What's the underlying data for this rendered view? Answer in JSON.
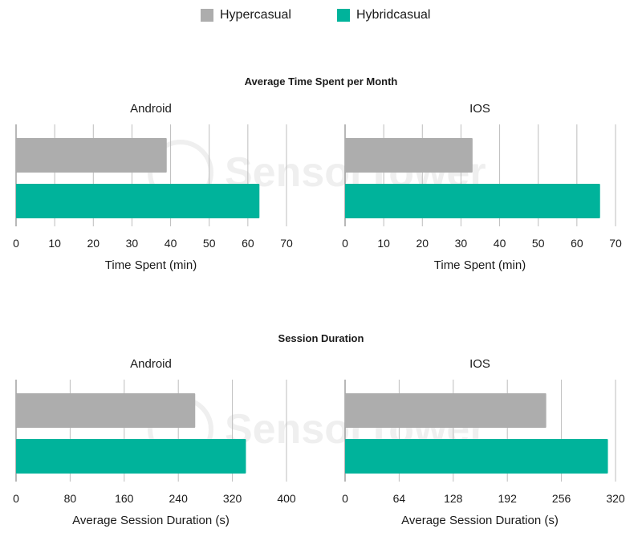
{
  "legend": {
    "items": [
      {
        "label": "Hypercasual",
        "color": "#adadad"
      },
      {
        "label": "Hybridcasual",
        "color": "#00b39b"
      }
    ]
  },
  "sections": {
    "time_spent": {
      "title": "Average Time Spent per Month"
    },
    "session": {
      "title": "Session Duration"
    }
  },
  "watermark": {
    "text": "SensorTower"
  },
  "chart_data": [
    {
      "type": "bar",
      "orientation": "horizontal",
      "subtitle": "Android",
      "xlabel": "Time Spent (min)",
      "xlim": [
        0,
        70
      ],
      "ticks": [
        0,
        10,
        20,
        30,
        40,
        50,
        60,
        70
      ],
      "series": [
        {
          "name": "Hypercasual",
          "value": 39,
          "color": "#adadad"
        },
        {
          "name": "Hybridcasual",
          "value": 63,
          "color": "#00b39b"
        }
      ]
    },
    {
      "type": "bar",
      "orientation": "horizontal",
      "subtitle": "IOS",
      "xlabel": "Time Spent (min)",
      "xlim": [
        0,
        70
      ],
      "ticks": [
        0,
        10,
        20,
        30,
        40,
        50,
        60,
        70
      ],
      "series": [
        {
          "name": "Hypercasual",
          "value": 33,
          "color": "#adadad"
        },
        {
          "name": "Hybridcasual",
          "value": 66,
          "color": "#00b39b"
        }
      ]
    },
    {
      "type": "bar",
      "orientation": "horizontal",
      "subtitle": "Android",
      "xlabel": "Average Session Duration (s)",
      "xlim": [
        0,
        400
      ],
      "ticks": [
        0,
        80,
        160,
        240,
        320,
        400
      ],
      "series": [
        {
          "name": "Hypercasual",
          "value": 265,
          "color": "#adadad"
        },
        {
          "name": "Hybridcasual",
          "value": 340,
          "color": "#00b39b"
        }
      ]
    },
    {
      "type": "bar",
      "orientation": "horizontal",
      "subtitle": "IOS",
      "xlabel": "Average Session Duration (s)",
      "xlim": [
        0,
        320
      ],
      "ticks": [
        0,
        64,
        128,
        192,
        256,
        320
      ],
      "series": [
        {
          "name": "Hypercasual",
          "value": 238,
          "color": "#adadad"
        },
        {
          "name": "Hybridcasual",
          "value": 311,
          "color": "#00b39b"
        }
      ]
    }
  ]
}
